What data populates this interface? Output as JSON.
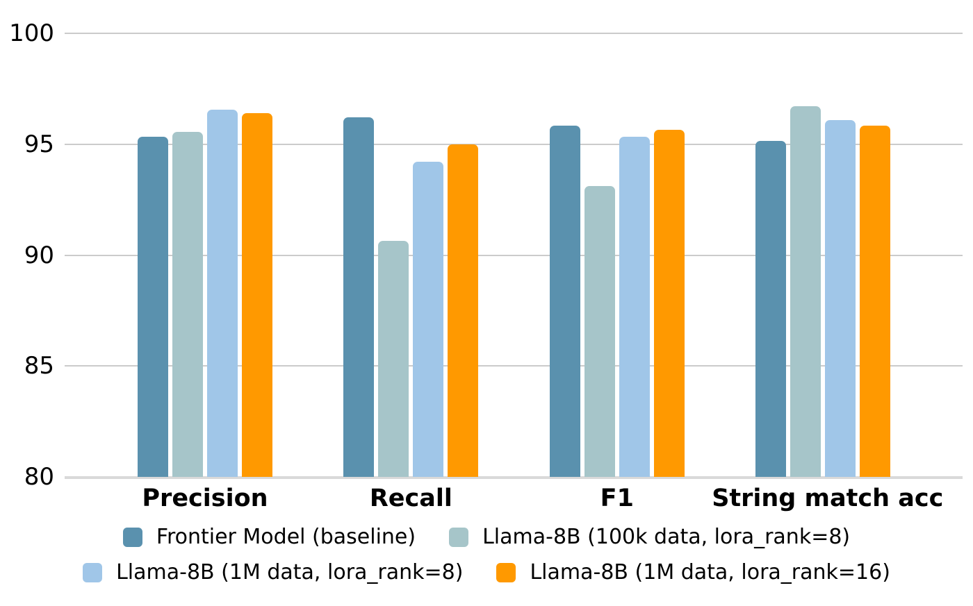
{
  "chart_data": {
    "type": "bar",
    "title": "",
    "xlabel": "",
    "ylabel": "",
    "categories": [
      "Precision",
      "Recall",
      "F1",
      "String match acc"
    ],
    "series": [
      {
        "name": "Frontier Model (baseline)",
        "color": "#5A91AE",
        "values": [
          95.35,
          96.2,
          95.85,
          95.15
        ]
      },
      {
        "name": "Llama-8B (100k data, lora_rank=8)",
        "color": "#A6C5C9",
        "values": [
          95.55,
          90.65,
          93.1,
          96.7
        ]
      },
      {
        "name": "Llama-8B (1M data, lora_rank=8)",
        "color": "#A0C6E8",
        "values": [
          96.55,
          94.2,
          95.35,
          96.1
        ]
      },
      {
        "name": "Llama-8B (1M data, lora_rank=16)",
        "color": "#FF9900",
        "values": [
          96.4,
          95.0,
          95.65,
          95.85
        ]
      }
    ],
    "ylim": [
      80,
      100
    ],
    "yticks": [
      100,
      95,
      90,
      85,
      80
    ],
    "grid": true,
    "legend_position": "bottom",
    "legend_rows": [
      [
        0,
        1
      ],
      [
        2,
        3
      ]
    ],
    "colors": {
      "gridline": "#CBCBCB",
      "baseline": "#D9D9D9",
      "text": "#000000",
      "background": "#FFFFFF"
    }
  }
}
